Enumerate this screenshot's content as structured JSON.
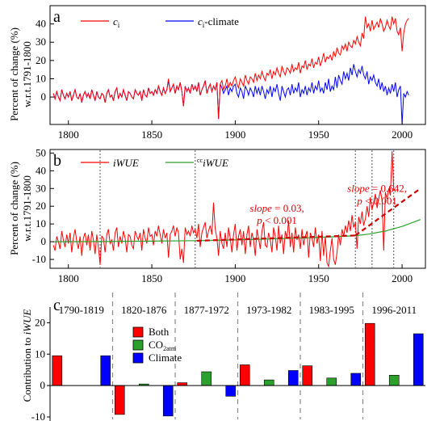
{
  "chart_data": [
    {
      "panel_label": "a",
      "type": "line",
      "ylabel_lines": [
        "Percent of change (%)",
        "w.r.t.1791-1800"
      ],
      "xlim": [
        1789,
        2014
      ],
      "ylim": [
        -15,
        50
      ],
      "x_ticks": [
        1800,
        1850,
        1900,
        1950,
        2000
      ],
      "y_ticks": [
        0,
        10,
        20,
        30,
        40
      ],
      "legend_position": "top",
      "series": [
        {
          "name_main": "c",
          "name_sub": "i",
          "name_suffix": "",
          "color": "#ff0000",
          "x_start": 1791,
          "values": [
            2,
            -1,
            3,
            0,
            -2,
            4,
            1,
            -1,
            2,
            0,
            3,
            -2,
            1,
            4,
            0,
            -1,
            2,
            -3,
            1,
            3,
            0,
            2,
            -1,
            4,
            1,
            -2,
            3,
            0,
            -1,
            2,
            1,
            -3,
            2,
            4,
            0,
            1,
            -2,
            3,
            5,
            -1,
            2,
            0,
            4,
            1,
            -2,
            3,
            2,
            0,
            -1,
            4,
            2,
            1,
            3,
            -2,
            4,
            1,
            0,
            5,
            2,
            3,
            1,
            4,
            2,
            6,
            3,
            1,
            5,
            2,
            4,
            10,
            3,
            5,
            7,
            2,
            6,
            4,
            8,
            3,
            -5,
            6,
            3,
            5,
            2,
            7,
            4,
            6,
            3,
            8,
            1,
            4,
            6,
            9,
            2,
            5,
            7,
            3,
            6,
            4,
            8,
            -12,
            7,
            9,
            4,
            6,
            10,
            5,
            8,
            6,
            9,
            11,
            7,
            5,
            10,
            8,
            6,
            12,
            9,
            7,
            11,
            10,
            8,
            13,
            9,
            12,
            10,
            14,
            11,
            9,
            13,
            12,
            15,
            10,
            14,
            12,
            16,
            13,
            11,
            17,
            14,
            12,
            16,
            15,
            13,
            18,
            14,
            16,
            15,
            19,
            13,
            17,
            16,
            20,
            15,
            18,
            17,
            21,
            16,
            19,
            18,
            22,
            17,
            20,
            24,
            19,
            22,
            21,
            23,
            20,
            25,
            22,
            27,
            24,
            23,
            28,
            26,
            29,
            25,
            30,
            28,
            27,
            31,
            29,
            33,
            30,
            28,
            35,
            32,
            44,
            38,
            40,
            36,
            42,
            37,
            39,
            41,
            38,
            43,
            40,
            36,
            38,
            42,
            39,
            37,
            44,
            40,
            43,
            36,
            34,
            38,
            25,
            35,
            40,
            42,
            43
          ],
          "points": []
        },
        {
          "name_main": "c",
          "name_sub": "i",
          "name_suffix": "-climate",
          "color": "#0000ff",
          "x_start": 1791,
          "values": [
            2,
            -1,
            3,
            0,
            -2,
            4,
            1,
            -1,
            2,
            0,
            3,
            -2,
            1,
            4,
            0,
            -1,
            2,
            -3,
            1,
            3,
            0,
            2,
            -1,
            4,
            1,
            -2,
            3,
            0,
            -1,
            2,
            1,
            -3,
            2,
            4,
            0,
            1,
            -2,
            3,
            5,
            -1,
            2,
            0,
            4,
            1,
            -2,
            3,
            2,
            0,
            -1,
            4,
            2,
            1,
            3,
            -2,
            4,
            1,
            0,
            5,
            2,
            3,
            1,
            4,
            2,
            6,
            3,
            1,
            5,
            2,
            4,
            9,
            3,
            5,
            7,
            2,
            6,
            4,
            8,
            3,
            -5,
            6,
            3,
            5,
            2,
            7,
            4,
            6,
            3,
            8,
            1,
            4,
            6,
            9,
            2,
            5,
            7,
            3,
            6,
            4,
            8,
            -12,
            7,
            5,
            2,
            4,
            6,
            1,
            5,
            3,
            6,
            7,
            2,
            0,
            5,
            3,
            -1,
            6,
            4,
            1,
            5,
            3,
            0,
            6,
            2,
            5,
            1,
            6,
            3,
            -1,
            4,
            2,
            6,
            0,
            5,
            3,
            7,
            2,
            -2,
            6,
            3,
            0,
            4,
            5,
            1,
            7,
            2,
            5,
            3,
            8,
            0,
            4,
            2,
            6,
            1,
            5,
            3,
            8,
            2,
            6,
            4,
            9,
            3,
            5,
            2,
            8,
            4,
            10,
            3,
            6,
            4,
            11,
            5,
            12,
            9,
            7,
            14,
            10,
            13,
            9,
            16,
            12,
            18,
            14,
            11,
            15,
            13,
            17,
            12,
            10,
            14,
            7,
            11,
            9,
            12,
            8,
            6,
            10,
            4,
            8,
            3,
            6,
            1,
            5,
            2,
            7,
            3,
            8,
            0,
            4,
            6,
            -15,
            2,
            0,
            3,
            1
          ]
        }
      ]
    },
    {
      "panel_label": "b",
      "type": "line",
      "ylabel_lines": [
        "Percent of change (%)",
        "w.r.t.1791-1800"
      ],
      "xlim": [
        1789,
        2014
      ],
      "ylim": [
        -15,
        52
      ],
      "x_ticks": [
        1800,
        1850,
        1900,
        1950,
        2000
      ],
      "y_ticks": [
        -10,
        0,
        10,
        20,
        30,
        40,
        50
      ],
      "legend_position": "top",
      "breakpoints": [
        1819,
        1876,
        1972,
        1982,
        1995
      ],
      "annotations": [
        {
          "slope_value": "0.03,",
          "p_text": "< 0.001",
          "x": 1925,
          "y_slope": 17,
          "y_p": 10
        },
        {
          "slope_value": "0.642,",
          "p_text": "< 0.001",
          "x": 1985,
          "y_slope": 28,
          "y_p": 21
        }
      ],
      "trend_segments": [
        {
          "x": [
            1877,
            1972
          ],
          "y": [
            0.5,
            3.5
          ]
        },
        {
          "x": [
            1972,
            2011
          ],
          "y": [
            3.5,
            30
          ]
        }
      ],
      "series": [
        {
          "name_main": "iWUE",
          "name_sup": "",
          "color": "#ff0000",
          "x_start": 1791,
          "values": [
            -2,
            -5,
            3,
            0,
            -4,
            6,
            1,
            -3,
            4,
            -1,
            5,
            -6,
            2,
            7,
            0,
            -4,
            3,
            -8,
            2,
            5,
            -2,
            4,
            -5,
            6,
            1,
            -7,
            4,
            -3,
            -13,
            3,
            2,
            -6,
            4,
            7,
            -1,
            1,
            -5,
            5,
            8,
            -3,
            3,
            -1,
            6,
            2,
            -6,
            4,
            3,
            -2,
            -4,
            6,
            3,
            1,
            5,
            -5,
            7,
            2,
            -1,
            8,
            3,
            4,
            -2,
            6,
            3,
            9,
            4,
            -1,
            7,
            2,
            5,
            -9,
            4,
            6,
            9,
            3,
            8,
            5,
            -10,
            -4,
            -12,
            8,
            4,
            6,
            3,
            9,
            5,
            7,
            2,
            10,
            -3,
            5,
            8,
            11,
            2,
            6,
            9,
            4,
            22,
            7,
            2,
            -8,
            6,
            -1,
            -4,
            5,
            -3,
            8,
            2,
            -6,
            4,
            10,
            -5,
            3,
            7,
            -2,
            6,
            -7,
            4,
            9,
            -3,
            5,
            1,
            -8,
            7,
            2,
            -4,
            6,
            11,
            -2,
            -3,
            5,
            1,
            -6,
            8,
            3,
            -5,
            9,
            -1,
            4,
            -7,
            6,
            2,
            12,
            -3,
            5,
            -6,
            8,
            1,
            4,
            -4,
            7,
            -2,
            3,
            6,
            -9,
            5,
            2,
            -3,
            8,
            -1,
            4,
            -11,
            6,
            -8,
            3,
            -12,
            -14,
            -5,
            2,
            -10,
            -13,
            -6,
            4,
            -2,
            7,
            3,
            9,
            5,
            12,
            6,
            15,
            8,
            11,
            -4,
            14,
            10,
            17,
            9,
            13,
            20,
            14,
            25,
            18,
            22,
            27,
            19,
            24,
            29,
            23,
            -5,
            28,
            24,
            30,
            26,
            51,
            30,
            28
          ],
          "points": []
        },
        {
          "name_main": "iWUE",
          "name_sup": "cc",
          "color": "#2ca02c",
          "curve": [
            [
              1791,
              0
            ],
            [
              1820,
              0.1
            ],
            [
              1850,
              0.3
            ],
            [
              1877,
              0.6
            ],
            [
              1900,
              1.0
            ],
            [
              1920,
              1.5
            ],
            [
              1940,
              2.1
            ],
            [
              1955,
              2.6
            ],
            [
              1965,
              3.0
            ],
            [
              1972,
              3.4
            ],
            [
              1980,
              4.3
            ],
            [
              1990,
              6.0
            ],
            [
              2000,
              8.6
            ],
            [
              2011,
              12.5
            ]
          ]
        }
      ]
    },
    {
      "panel_label": "c",
      "type": "bar",
      "ylabel_main": "Contribution to ",
      "ylabel_italic": "iWUE",
      "ylim": [
        -10,
        25
      ],
      "y_ticks": [
        -10,
        0,
        10,
        20
      ],
      "categories": [
        "1790-1819",
        "1820-1876",
        "1877-1972",
        "1973-1982",
        "1983-1995",
        "1996-2011"
      ],
      "legend_position": "top-left of second period",
      "series": [
        {
          "name_main": "Both",
          "name_sub": "",
          "color": "#ff0000",
          "values": [
            9.5,
            -9.2,
            0.9,
            6.6,
            6.3,
            19.8
          ]
        },
        {
          "name_main": "CO",
          "name_sub": "2atm",
          "color": "#2ca02c",
          "values": [
            0,
            0.5,
            4.4,
            1.8,
            2.4,
            3.3
          ]
        },
        {
          "name_main": "Climate",
          "name_sub": "",
          "color": "#0000ff",
          "values": [
            9.5,
            -9.7,
            -3.4,
            4.8,
            3.9,
            16.5
          ]
        }
      ]
    }
  ]
}
